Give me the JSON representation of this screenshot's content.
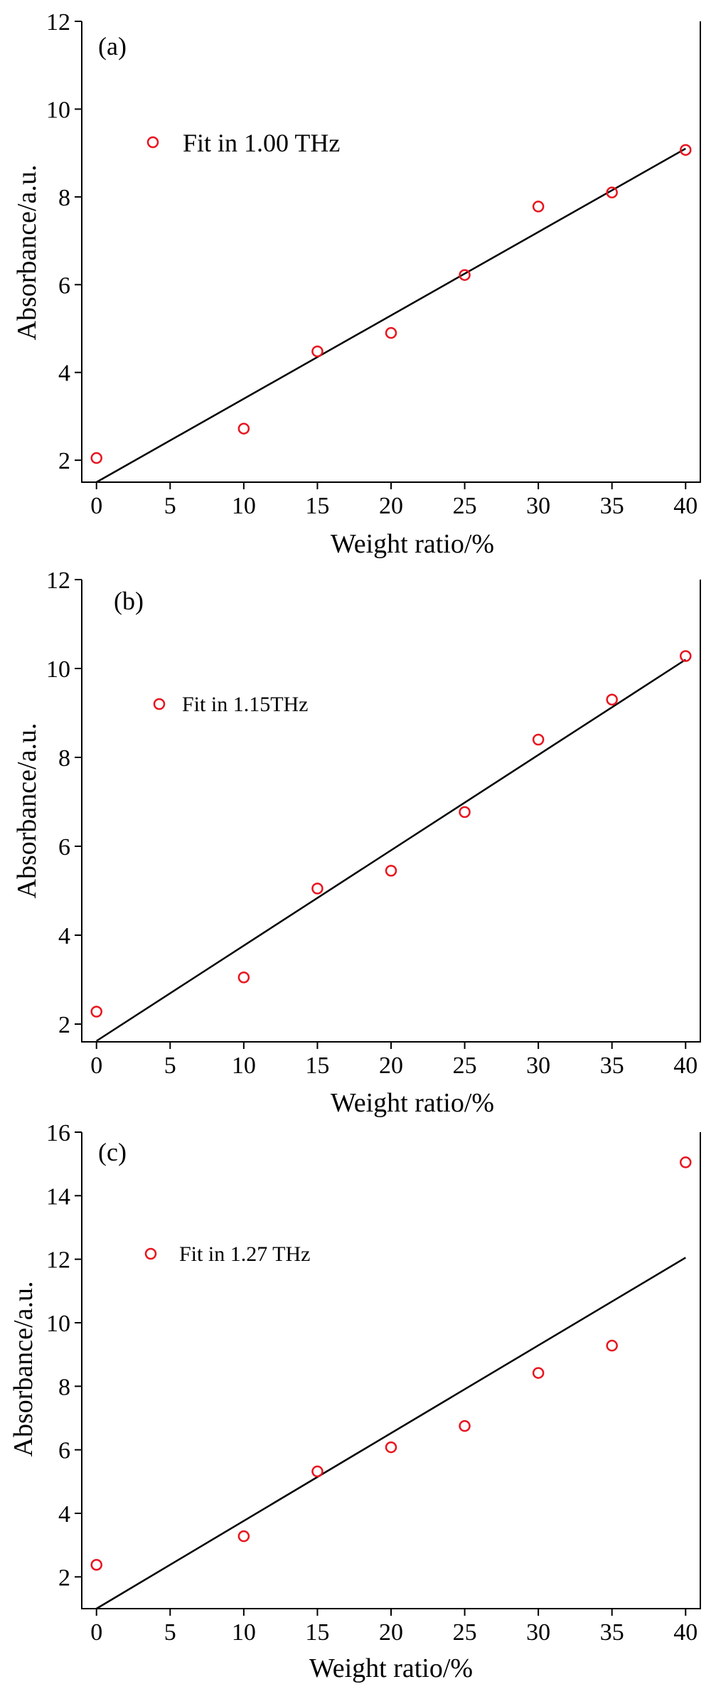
{
  "chart_data": [
    {
      "type": "scatter",
      "panel_label": "(a)",
      "xlabel": "Weight ratio/%",
      "ylabel": "Absorbance/a.u.",
      "xlim": [
        -1,
        41
      ],
      "ylim": [
        1.5,
        12
      ],
      "xticks": [
        0,
        5,
        10,
        15,
        20,
        25,
        30,
        35,
        40
      ],
      "yticks": [
        2,
        4,
        6,
        8,
        10,
        12
      ],
      "series": [
        {
          "name": "Fit in 1.00 THz",
          "x": [
            0,
            10,
            15,
            20,
            25,
            30,
            35,
            40
          ],
          "y": [
            2.05,
            2.72,
            4.48,
            4.9,
            6.22,
            7.78,
            8.1,
            9.07
          ]
        }
      ],
      "fit_line": {
        "x": [
          0,
          40
        ],
        "y": [
          1.5,
          9.1
        ]
      },
      "grid": false,
      "legend_position": "top-left",
      "marker_color": "#e8141e",
      "line_color": "#000000"
    },
    {
      "type": "scatter",
      "panel_label": "(b)",
      "xlabel": "Weight ratio/%",
      "ylabel": "Absorbance/a.u.",
      "xlim": [
        -1,
        41
      ],
      "ylim": [
        1.6,
        12
      ],
      "xticks": [
        0,
        5,
        10,
        15,
        20,
        25,
        30,
        35,
        40
      ],
      "yticks": [
        2,
        4,
        6,
        8,
        10,
        12
      ],
      "series": [
        {
          "name": "Fit in 1.15THz",
          "x": [
            0,
            10,
            15,
            20,
            25,
            30,
            35,
            40
          ],
          "y": [
            2.28,
            3.05,
            5.05,
            5.45,
            6.77,
            8.4,
            9.3,
            10.28
          ]
        }
      ],
      "fit_line": {
        "x": [
          0,
          40
        ],
        "y": [
          1.62,
          10.2
        ]
      },
      "grid": false,
      "legend_position": "top-left",
      "marker_color": "#e8141e",
      "line_color": "#000000"
    },
    {
      "type": "scatter",
      "panel_label": "(c)",
      "xlabel": "Weight ratio/%",
      "ylabel": "Absorbance/a.u.",
      "xlim": [
        -1,
        41
      ],
      "ylim": [
        1,
        16
      ],
      "xticks": [
        0,
        5,
        10,
        15,
        20,
        25,
        30,
        35,
        40
      ],
      "yticks": [
        2,
        4,
        6,
        8,
        10,
        12,
        14,
        16
      ],
      "series": [
        {
          "name": "Fit in 1.27 THz",
          "x": [
            0,
            10,
            15,
            20,
            25,
            30,
            35,
            40
          ],
          "y": [
            2.38,
            3.28,
            5.32,
            6.08,
            6.75,
            8.42,
            9.28,
            15.05
          ]
        }
      ],
      "fit_line": {
        "x": [
          0,
          40
        ],
        "y": [
          1.0,
          12.05
        ]
      },
      "grid": false,
      "legend_position": "top-left",
      "marker_color": "#e8141e",
      "line_color": "#000000"
    }
  ]
}
